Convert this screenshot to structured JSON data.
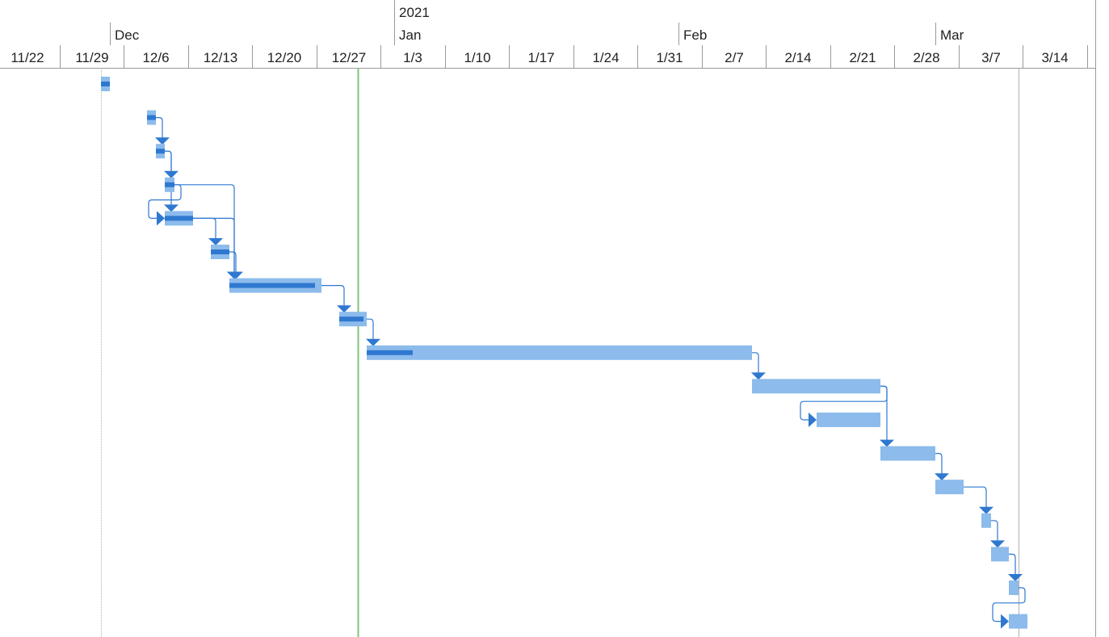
{
  "timescale": {
    "year": [
      {
        "label": "",
        "start": "2020-11-19"
      },
      {
        "label": "2021",
        "start": "2021-01-01"
      }
    ],
    "months": [
      {
        "label": "",
        "start": "2020-11-19"
      },
      {
        "label": "Dec",
        "start": "2020-12-01"
      },
      {
        "label": "Jan",
        "start": "2021-01-01"
      },
      {
        "label": "Feb",
        "start": "2021-02-01"
      },
      {
        "label": "Mar",
        "start": "2021-03-01"
      }
    ],
    "weeks": [
      "11/22",
      "11/29",
      "12/6",
      "12/13",
      "12/20",
      "12/27",
      "1/3",
      "1/10",
      "1/17",
      "1/24",
      "1/31",
      "2/7",
      "2/14",
      "2/21",
      "2/28",
      "3/7",
      "3/14"
    ]
  },
  "markers": {
    "project_start": "2020-11-30",
    "current_date": "2020-12-28",
    "project_finish": "2021-03-10",
    "current_date_color": "#7dc47a",
    "boundary_color": "#b0b0b0"
  },
  "colors": {
    "bar": "#8cbbec",
    "progress": "#2f78d0",
    "link": "#2f78d0"
  },
  "tasks": [
    {
      "start": "2020-11-30",
      "finish": "2020-12-01",
      "percent_complete": 100
    },
    {
      "start": "2020-12-05",
      "finish": "2020-12-06",
      "percent_complete": 100
    },
    {
      "start": "2020-12-06",
      "finish": "2020-12-07",
      "percent_complete": 100
    },
    {
      "start": "2020-12-07",
      "finish": "2020-12-08",
      "percent_complete": 100
    },
    {
      "start": "2020-12-07",
      "finish": "2020-12-10",
      "percent_complete": 100
    },
    {
      "start": "2020-12-12",
      "finish": "2020-12-14",
      "percent_complete": 100
    },
    {
      "start": "2020-12-14",
      "finish": "2020-12-24",
      "percent_complete": 93
    },
    {
      "start": "2020-12-26",
      "finish": "2020-12-29",
      "percent_complete": 87
    },
    {
      "start": "2020-12-29",
      "finish": "2021-02-09",
      "percent_complete": 12
    },
    {
      "start": "2021-02-09",
      "finish": "2021-02-23",
      "percent_complete": 0
    },
    {
      "start": "2021-02-16",
      "finish": "2021-02-23",
      "percent_complete": 0
    },
    {
      "start": "2021-02-23",
      "finish": "2021-03-01",
      "percent_complete": 0
    },
    {
      "start": "2021-03-01",
      "finish": "2021-03-04",
      "percent_complete": 0
    },
    {
      "start": "2021-03-06",
      "finish": "2021-03-07",
      "percent_complete": 0
    },
    {
      "start": "2021-03-07",
      "finish": "2021-03-09",
      "percent_complete": 0
    },
    {
      "start": "2021-03-09",
      "finish": "2021-03-10",
      "percent_complete": 0
    },
    {
      "start": "2021-03-09",
      "finish": "2021-03-11",
      "percent_complete": 0
    }
  ],
  "links": [
    {
      "from": 1,
      "to": 2
    },
    {
      "from": 2,
      "to": 3
    },
    {
      "from": 2,
      "to": 4
    },
    {
      "from": 3,
      "to": 4
    },
    {
      "from": 3,
      "to": 6
    },
    {
      "from": 4,
      "to": 5
    },
    {
      "from": 4,
      "to": 6
    },
    {
      "from": 5,
      "to": 6
    },
    {
      "from": 6,
      "to": 7
    },
    {
      "from": 7,
      "to": 8
    },
    {
      "from": 8,
      "to": 9
    },
    {
      "from": 9,
      "to": 10
    },
    {
      "from": 9,
      "to": 11
    },
    {
      "from": 11,
      "to": 12
    },
    {
      "from": 12,
      "to": 13
    },
    {
      "from": 13,
      "to": 14
    },
    {
      "from": 14,
      "to": 15
    },
    {
      "from": 15,
      "to": 16
    }
  ]
}
